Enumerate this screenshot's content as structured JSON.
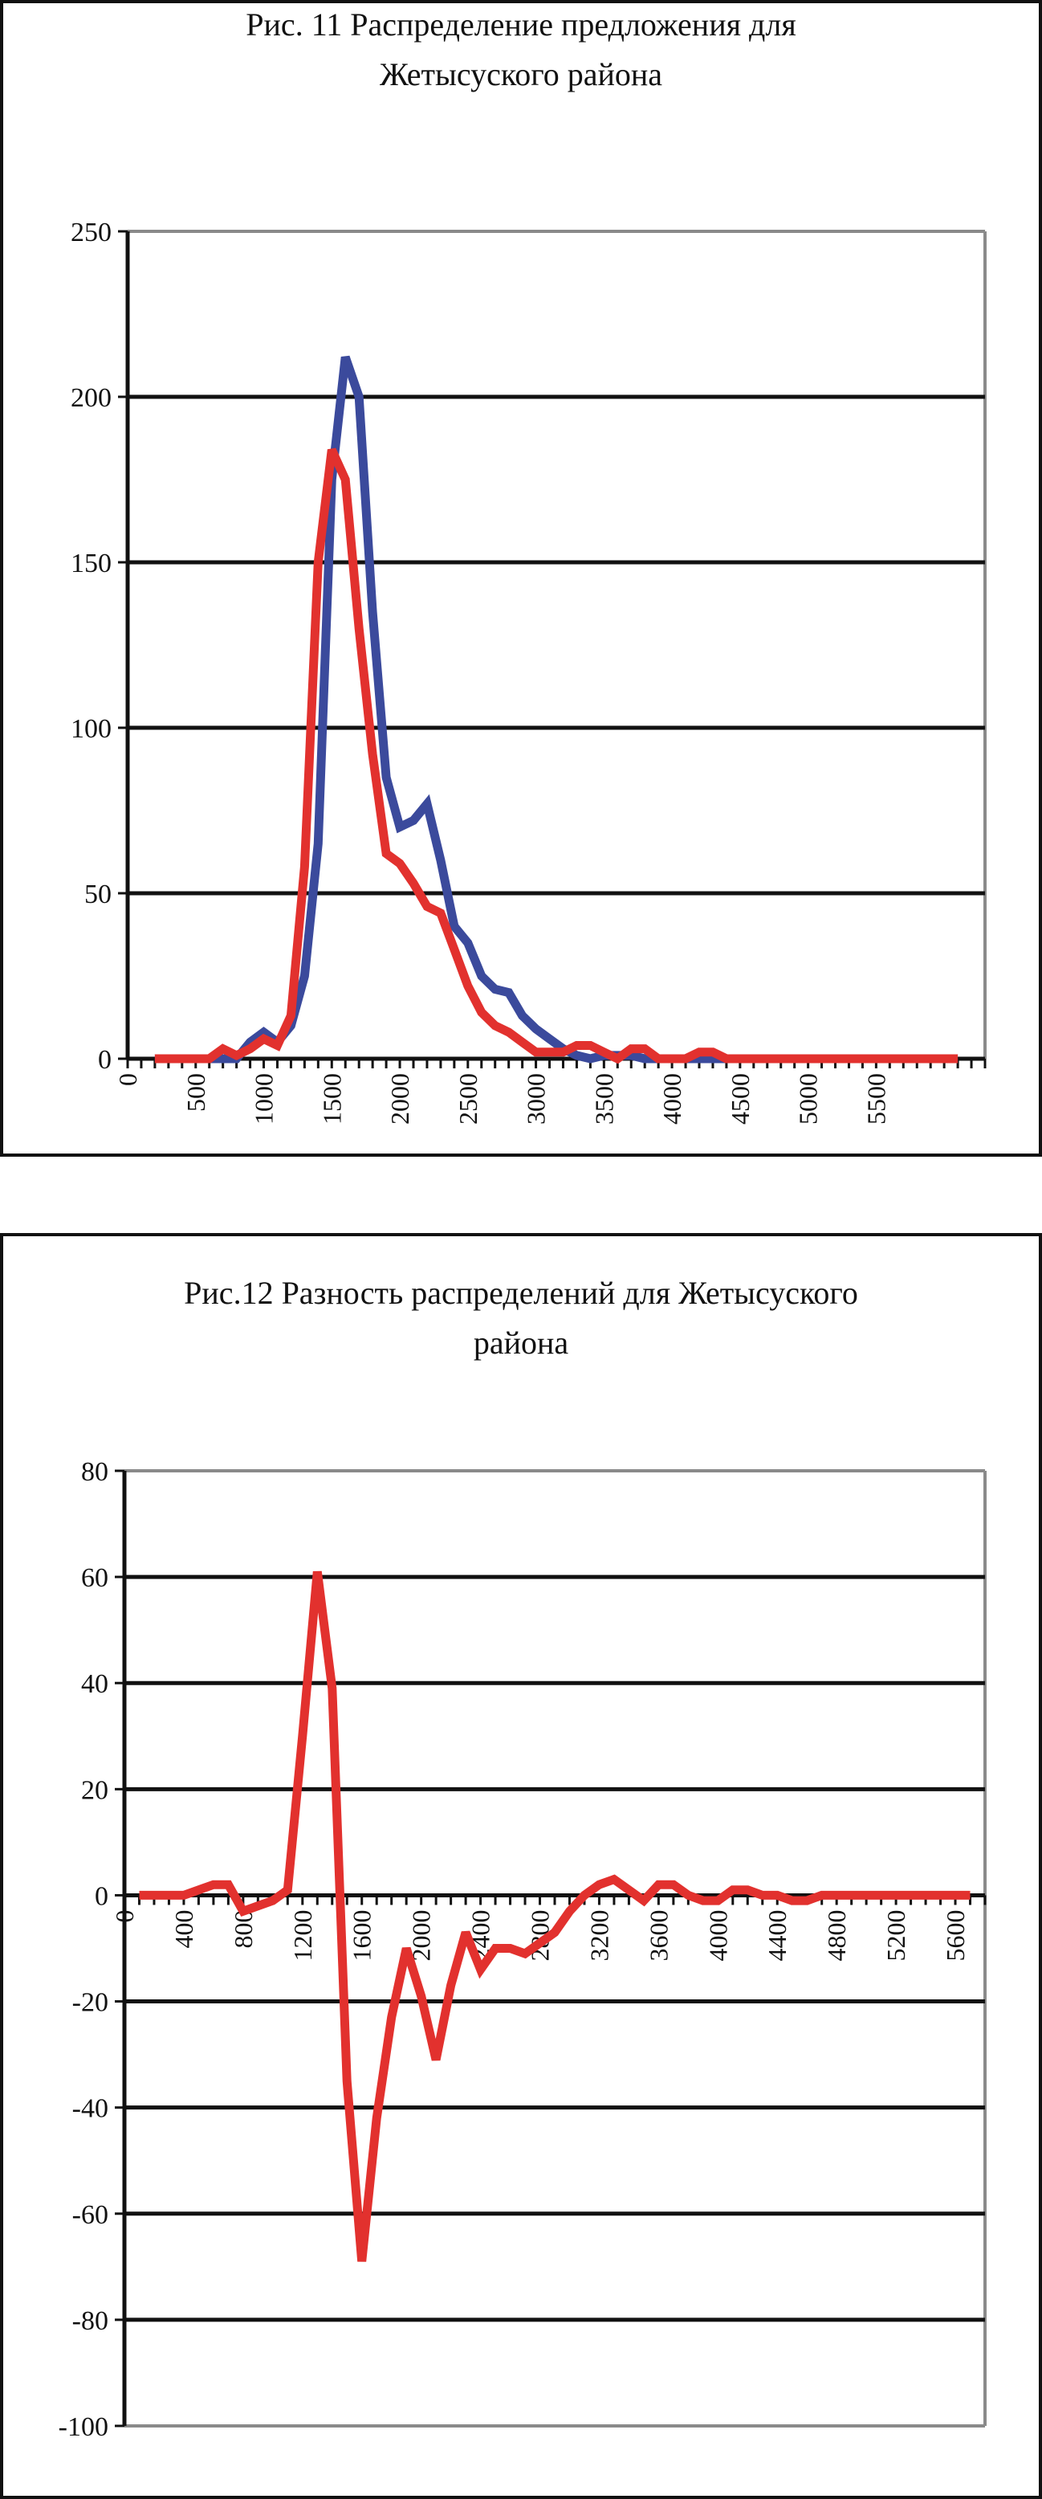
{
  "chart_data": [
    {
      "type": "line",
      "title": "Рис. 11 Распределение предложения для Жетысуского района",
      "title_lines": [
        "Рис. 11 Распределение предложения для",
        "Жетысуского района"
      ],
      "xlabel": "",
      "ylabel": "",
      "ylim": [
        0,
        250
      ],
      "xlim": [
        0,
        6300
      ],
      "yticks": [
        "0",
        "50",
        "100",
        "150",
        "200",
        "250"
      ],
      "xticks": [
        "0",
        "500",
        "1000",
        "1500",
        "2000",
        "2500",
        "3000",
        "3500",
        "4000",
        "4500",
        "5000",
        "5500"
      ],
      "grid": true,
      "legend": "none",
      "x": [
        200,
        300,
        400,
        500,
        600,
        700,
        800,
        900,
        1000,
        1100,
        1200,
        1300,
        1400,
        1500,
        1600,
        1700,
        1800,
        1900,
        2000,
        2100,
        2200,
        2300,
        2400,
        2500,
        2600,
        2700,
        2800,
        2900,
        3000,
        3100,
        3200,
        3300,
        3400,
        3500,
        3600,
        3700,
        3800,
        3900,
        4000,
        4100,
        4200,
        4300,
        4400,
        4500,
        4600,
        4700,
        4800,
        4900,
        5000,
        5100,
        5200,
        5300,
        5400,
        5500,
        5600,
        5700,
        5800,
        5900,
        6000,
        6100
      ],
      "series": [
        {
          "name": "blue",
          "color": "#3b4a9c",
          "values": [
            0,
            0,
            0,
            0,
            0,
            0,
            0,
            5,
            8,
            5,
            10,
            25,
            65,
            175,
            212,
            200,
            135,
            85,
            70,
            72,
            77,
            60,
            40,
            35,
            25,
            21,
            20,
            13,
            9,
            6,
            3,
            1,
            0,
            1,
            1,
            1,
            0,
            0,
            0,
            0,
            0,
            0,
            0,
            0,
            0,
            0,
            0,
            0,
            0,
            0,
            0,
            0,
            0,
            0,
            0,
            0,
            0,
            0,
            0,
            0
          ]
        },
        {
          "name": "red",
          "color": "#e2312e",
          "values": [
            0,
            0,
            0,
            0,
            0,
            3,
            1,
            3,
            6,
            4,
            13,
            58,
            150,
            184,
            175,
            130,
            92,
            62,
            59,
            53,
            46,
            44,
            33,
            22,
            14,
            10,
            8,
            5,
            2,
            2,
            2,
            4,
            4,
            2,
            0,
            3,
            3,
            0,
            0,
            0,
            2,
            2,
            0,
            0,
            0,
            0,
            0,
            0,
            0,
            0,
            0,
            0,
            0,
            0,
            0,
            0,
            0,
            0,
            0,
            0
          ]
        }
      ]
    },
    {
      "type": "line",
      "title": "Рис.12 Разность распределений для Жетысуского района",
      "title_lines": [
        "Рис.12 Разность распределений для Жетысуского",
        "района"
      ],
      "xlabel": "",
      "ylabel": "",
      "ylim": [
        -100,
        80
      ],
      "xlim": [
        0,
        5800
      ],
      "yticks": [
        "-100",
        "-80",
        "-60",
        "-40",
        "-20",
        "0",
        "20",
        "40",
        "60",
        "80"
      ],
      "xticks": [
        "0",
        "400",
        "800",
        "1200",
        "1600",
        "2000",
        "2400",
        "2800",
        "3200",
        "3600",
        "4000",
        "4400",
        "4800",
        "5200",
        "5600"
      ],
      "grid": true,
      "legend": "none",
      "x": [
        100,
        200,
        300,
        400,
        500,
        600,
        700,
        800,
        900,
        1000,
        1100,
        1200,
        1300,
        1400,
        1500,
        1600,
        1700,
        1800,
        1900,
        2000,
        2100,
        2200,
        2300,
        2400,
        2500,
        2600,
        2700,
        2800,
        2900,
        3000,
        3100,
        3200,
        3300,
        3400,
        3500,
        3600,
        3700,
        3800,
        3900,
        4000,
        4100,
        4200,
        4300,
        4400,
        4500,
        4600,
        4700,
        4800,
        4900,
        5000,
        5100,
        5200,
        5300,
        5400,
        5500,
        5600,
        5700
      ],
      "series": [
        {
          "name": "difference",
          "color": "#e2312e",
          "values": [
            0,
            0,
            0,
            0,
            1,
            2,
            2,
            -3,
            -2,
            -1,
            1,
            30,
            61,
            39,
            -35,
            -69,
            -42,
            -23,
            -10,
            -19,
            -31,
            -17,
            -7,
            -14,
            -10,
            -10,
            -11,
            -9,
            -7,
            -3,
            0,
            2,
            3,
            1,
            -1,
            2,
            2,
            0,
            -1,
            -1,
            1,
            1,
            0,
            0,
            -1,
            -1,
            0,
            0,
            0,
            0,
            0,
            0,
            0,
            0,
            0,
            0,
            0
          ]
        }
      ]
    }
  ]
}
